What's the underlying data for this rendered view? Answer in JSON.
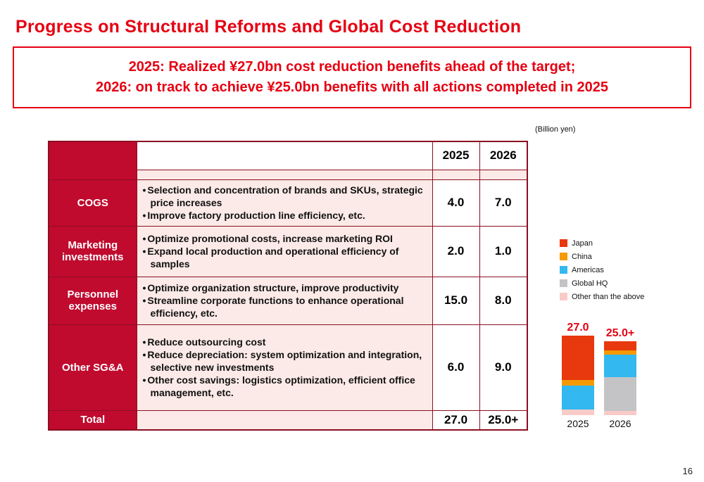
{
  "slide": {
    "title": "Progress on Structural Reforms and Global Cost Reduction",
    "highlight_line1": "2025: Realized ¥27.0bn cost reduction benefits ahead of the target;",
    "highlight_line2": "2026: on track to achieve ¥25.0bn benefits with all actions completed in 2025",
    "unit_label": "(Billion yen)",
    "page_number": "16"
  },
  "table": {
    "col_headers": [
      "2025",
      "2026"
    ],
    "rows": [
      {
        "label": "COGS",
        "bullets": [
          "Selection and concentration of brands and SKUs, strategic price increases",
          "Improve factory production line efficiency, etc."
        ],
        "v2025": "4.0",
        "v2026": "7.0"
      },
      {
        "label": "Marketing investments",
        "bullets": [
          "Optimize promotional costs, increase marketing ROI",
          "Expand local production and operational efficiency of samples"
        ],
        "v2025": "2.0",
        "v2026": "1.0"
      },
      {
        "label": "Personnel expenses",
        "bullets": [
          "Optimize organization structure, improve productivity",
          "Streamline corporate functions to enhance operational efficiency, etc."
        ],
        "v2025": "15.0",
        "v2026": "8.0"
      },
      {
        "label": "Other SG&A",
        "bullets": [
          "Reduce outsourcing cost",
          "Reduce depreciation: system optimization and integration, selective new investments",
          "Other cost savings: logistics optimization, efficient office management, etc."
        ],
        "v2025": "6.0",
        "v2026": "9.0"
      }
    ],
    "total": {
      "label": "Total",
      "v2025": "27.0",
      "v2026": "25.0+"
    }
  },
  "chart_data": {
    "type": "bar",
    "stacked": true,
    "title": "Cost reduction benefits by region (Billion yen)",
    "categories": [
      "2025",
      "2026"
    ],
    "bar_totals": [
      "27.0",
      "25.0+"
    ],
    "series": [
      {
        "name": "Japan",
        "color": "#e8380d",
        "values": [
          15.0,
          3.0
        ]
      },
      {
        "name": "China",
        "color": "#f59a00",
        "values": [
          2.0,
          1.5
        ]
      },
      {
        "name": "Americas",
        "color": "#33b8ef",
        "values": [
          8.0,
          7.5
        ]
      },
      {
        "name": "Global HQ",
        "color": "#c4c4c6",
        "values": [
          0,
          11.5
        ]
      },
      {
        "name": "Other than the above",
        "color": "#f8cbc8",
        "values": [
          2.0,
          1.5
        ]
      }
    ],
    "ylim": [
      0,
      27
    ],
    "legend_position": "above-right",
    "grid": false
  }
}
